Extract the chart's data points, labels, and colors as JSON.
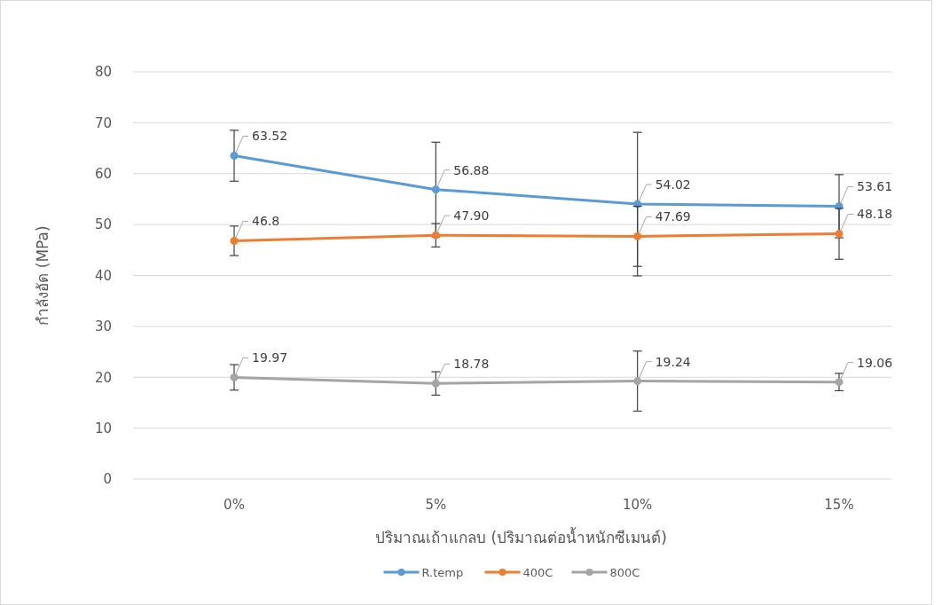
{
  "chart_data": {
    "type": "line",
    "xlabel": "ปริมาณเถ้าแกลบ (ปริมาณต่อน้ำหนักซีเมนต์)",
    "ylabel": "กำลังอัด (MPa)",
    "categories": [
      "0%",
      "5%",
      "10%",
      "15%"
    ],
    "series": [
      {
        "name": "R.temp",
        "color": "#5b9bd5",
        "values": [
          63.52,
          56.88,
          54.02,
          53.61
        ],
        "value_labels": [
          "63.52",
          "56.88",
          "54.02",
          "53.61"
        ],
        "errors": [
          5,
          9.3,
          14.1,
          6.2
        ]
      },
      {
        "name": "400C",
        "color": "#ed7d31",
        "values": [
          46.8,
          47.9,
          47.69,
          48.18
        ],
        "value_labels": [
          "46.8",
          "47.90",
          "47.69",
          "48.18"
        ],
        "errors": [
          2.9,
          2.3,
          5.9,
          5
        ]
      },
      {
        "name": "800C",
        "color": "#a5a5a5",
        "values": [
          19.97,
          18.78,
          19.24,
          19.06
        ],
        "value_labels": [
          "19.97",
          "18.78",
          "19.24",
          "19.06"
        ],
        "errors": [
          2.5,
          2.3,
          5.9,
          1.7
        ]
      }
    ],
    "ylim": [
      0,
      80
    ],
    "yticks": [
      0,
      10,
      20,
      30,
      40,
      50,
      60,
      70,
      80
    ],
    "grid": "y",
    "legend": "bottom",
    "marker": "circle",
    "line_style": "solid"
  }
}
